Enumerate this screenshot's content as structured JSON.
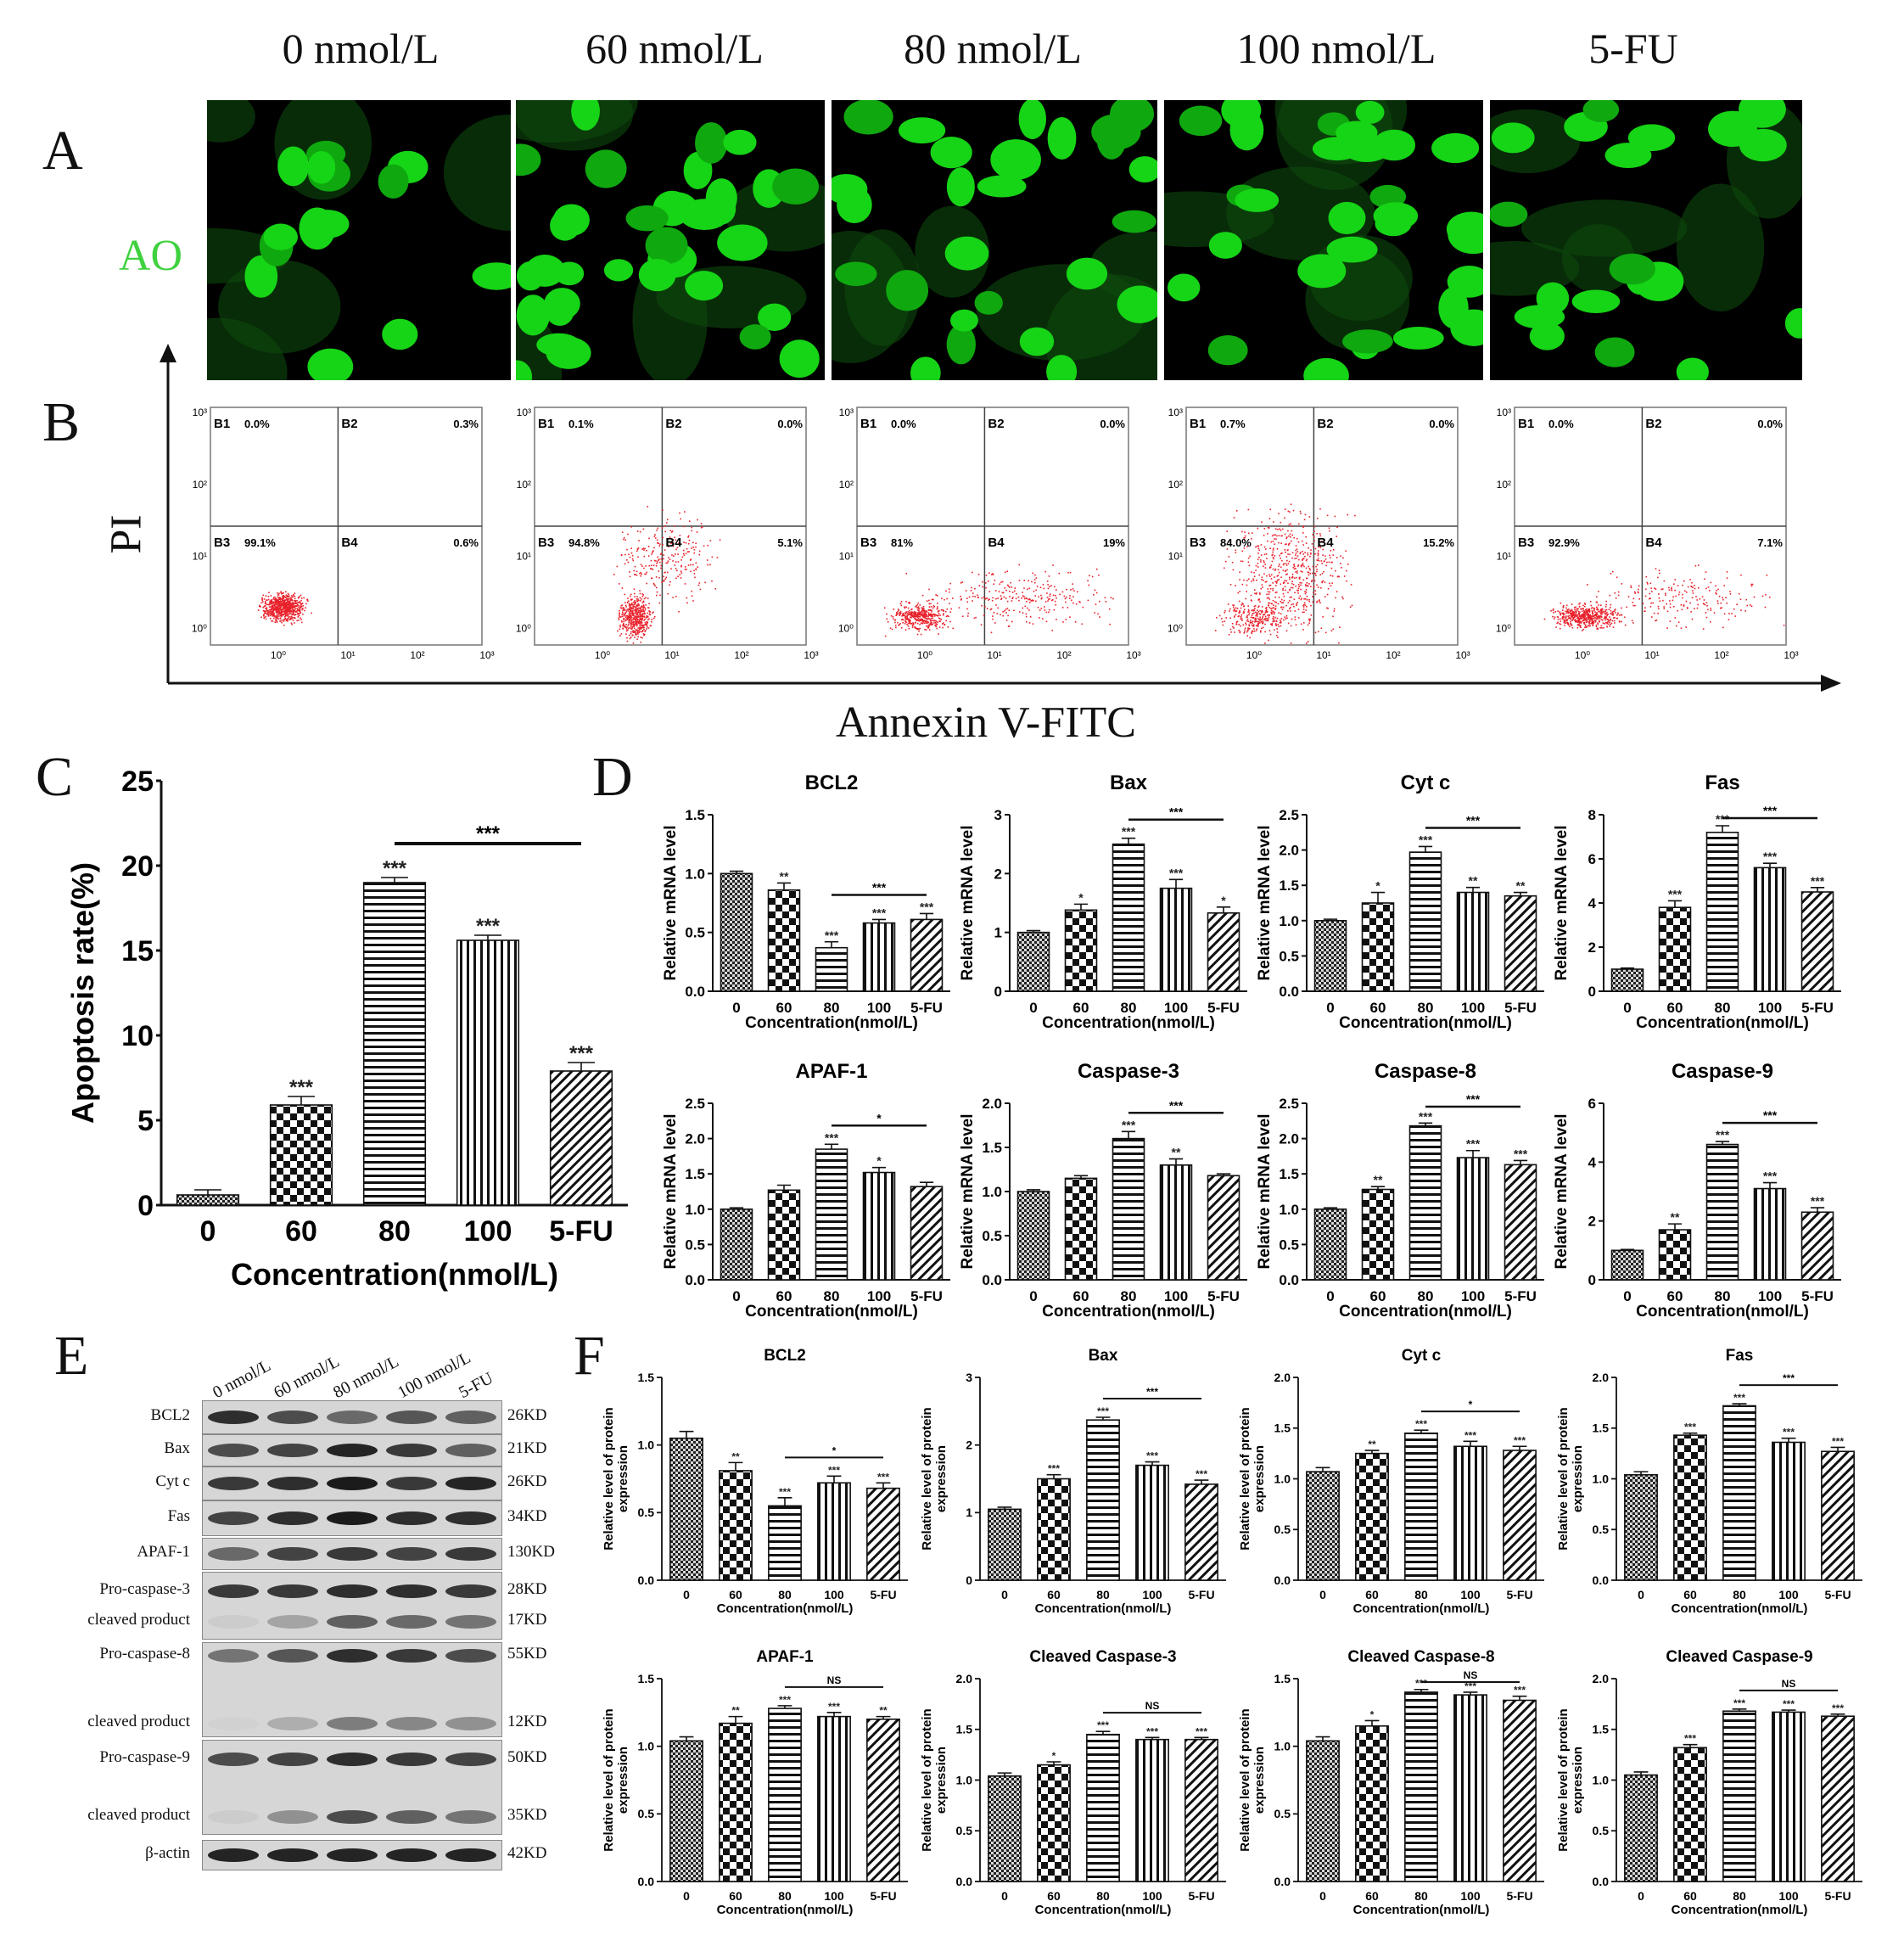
{
  "panels": {
    "A": "A",
    "B": "B",
    "C": "C",
    "D": "D",
    "E": "E",
    "F": "F"
  },
  "concentrations": [
    "0 nmol/L",
    "60 nmol/L",
    "80 nmol/L",
    "100 nmol/L",
    "5-FU"
  ],
  "ao_label": "AO",
  "flow": {
    "y_label": "PI",
    "x_label": "Annexin V-FITC",
    "axis_ticks_y": [
      "10³",
      "10²",
      "10¹",
      "10⁰"
    ],
    "axis_ticks_x": [
      "10⁰",
      "10¹",
      "10²",
      "10³"
    ],
    "quadrant_names": [
      "B1",
      "B2",
      "B3",
      "B4"
    ],
    "plots": [
      {
        "B1": "0.0%",
        "B2": "0.3%",
        "B3": "99.1%",
        "B4": "0.6%"
      },
      {
        "B1": "0.1%",
        "B2": "0.0%",
        "B3": "94.8%",
        "B4": "5.1%"
      },
      {
        "B1": "0.0%",
        "B2": "0.0%",
        "B3": "81%",
        "B4": "19%"
      },
      {
        "B1": "0.7%",
        "B2": "0.0%",
        "B3": "84.0%",
        "B4": "15.2%"
      },
      {
        "B1": "0.0%",
        "B2": "0.0%",
        "B3": "92.9%",
        "B4": "7.1%"
      }
    ]
  },
  "chart_data": [
    {
      "id": "C",
      "type": "bar",
      "title": "",
      "xlabel": "Concentration(nmol/L)",
      "ylabel": "Apoptosis rate(%)",
      "categories": [
        "0",
        "60",
        "80",
        "100",
        "5-FU"
      ],
      "values": [
        0.6,
        5.9,
        19.0,
        15.6,
        7.9
      ],
      "errors": [
        0.3,
        0.5,
        0.3,
        0.3,
        0.5
      ],
      "stars": [
        "",
        "***",
        "***",
        "***",
        "***"
      ],
      "bracket": "***",
      "ylim": [
        0,
        25
      ],
      "yticks": [
        "0",
        "5",
        "10",
        "15",
        "20",
        "25"
      ]
    },
    {
      "id": "D1",
      "type": "bar",
      "title": "BCL2",
      "xlabel": "Concentration(nmol/L)",
      "ylabel": "Relative mRNA level",
      "categories": [
        "0",
        "60",
        "80",
        "100",
        "5-FU"
      ],
      "values": [
        1.0,
        0.86,
        0.37,
        0.58,
        0.61
      ],
      "errors": [
        0.02,
        0.06,
        0.05,
        0.03,
        0.05
      ],
      "stars": [
        "",
        "**",
        "***",
        "***",
        "***"
      ],
      "bracket": "***",
      "ylim": [
        0,
        1.5
      ],
      "yticks": [
        "0.0",
        "0.5",
        "1.0",
        "1.5"
      ]
    },
    {
      "id": "D2",
      "type": "bar",
      "title": "Bax",
      "xlabel": "Concentration(nmol/L)",
      "ylabel": "Relative mRNA level",
      "categories": [
        "0",
        "60",
        "80",
        "100",
        "5-FU"
      ],
      "values": [
        1.0,
        1.38,
        2.5,
        1.75,
        1.33
      ],
      "errors": [
        0.03,
        0.1,
        0.1,
        0.15,
        0.1
      ],
      "stars": [
        "",
        "*",
        "***",
        "***",
        "*"
      ],
      "bracket": "***",
      "ylim": [
        0,
        3
      ],
      "yticks": [
        "0",
        "1",
        "2",
        "3"
      ]
    },
    {
      "id": "D3",
      "type": "bar",
      "title": "Cyt c",
      "xlabel": "Concentration(nmol/L)",
      "ylabel": "Relative mRNA level",
      "categories": [
        "0",
        "60",
        "80",
        "100",
        "5-FU"
      ],
      "values": [
        1.0,
        1.25,
        1.97,
        1.4,
        1.35
      ],
      "errors": [
        0.02,
        0.15,
        0.08,
        0.07,
        0.05
      ],
      "stars": [
        "",
        "*",
        "***",
        "**",
        "**"
      ],
      "bracket": "***",
      "ylim": [
        0,
        2.5
      ],
      "yticks": [
        "0.0",
        "0.5",
        "1.0",
        "1.5",
        "2.0",
        "2.5"
      ]
    },
    {
      "id": "D4",
      "type": "bar",
      "title": "Fas",
      "xlabel": "Concentration(nmol/L)",
      "ylabel": "Relative mRNA level",
      "categories": [
        "0",
        "60",
        "80",
        "100",
        "5-FU"
      ],
      "values": [
        1.0,
        3.8,
        7.2,
        5.6,
        4.5
      ],
      "errors": [
        0.05,
        0.3,
        0.3,
        0.2,
        0.2
      ],
      "stars": [
        "",
        "***",
        "***",
        "***",
        "***"
      ],
      "bracket": "***",
      "ylim": [
        0,
        8
      ],
      "yticks": [
        "0",
        "2",
        "4",
        "6",
        "8"
      ]
    },
    {
      "id": "D5",
      "type": "bar",
      "title": "APAF-1",
      "xlabel": "Concentration(nmol/L)",
      "ylabel": "Relative mRNA level",
      "categories": [
        "0",
        "60",
        "80",
        "100",
        "5-FU"
      ],
      "values": [
        1.0,
        1.27,
        1.85,
        1.52,
        1.32
      ],
      "errors": [
        0.02,
        0.07,
        0.07,
        0.07,
        0.06
      ],
      "stars": [
        "",
        "",
        "***",
        "*",
        ""
      ],
      "bracket": "*",
      "ylim": [
        0,
        2.5
      ],
      "yticks": [
        "0.0",
        "0.5",
        "1.0",
        "1.5",
        "2.0",
        "2.5"
      ]
    },
    {
      "id": "D6",
      "type": "bar",
      "title": "Caspase-3",
      "xlabel": "Concentration(nmol/L)",
      "ylabel": "Relative mRNA level",
      "categories": [
        "0",
        "60",
        "80",
        "100",
        "5-FU"
      ],
      "values": [
        1.0,
        1.15,
        1.6,
        1.3,
        1.18
      ],
      "errors": [
        0.02,
        0.03,
        0.08,
        0.07,
        0.02
      ],
      "stars": [
        "",
        "",
        "***",
        "**",
        ""
      ],
      "bracket": "***",
      "ylim": [
        0,
        2.0
      ],
      "yticks": [
        "0.0",
        "0.5",
        "1.0",
        "1.5",
        "2.0"
      ]
    },
    {
      "id": "D7",
      "type": "bar",
      "title": "Caspase-8",
      "xlabel": "Concentration(nmol/L)",
      "ylabel": "Relative mRNA level",
      "categories": [
        "0",
        "60",
        "80",
        "100",
        "5-FU"
      ],
      "values": [
        1.0,
        1.28,
        2.18,
        1.73,
        1.63
      ],
      "errors": [
        0.02,
        0.04,
        0.04,
        0.1,
        0.06
      ],
      "stars": [
        "",
        "**",
        "***",
        "***",
        "***"
      ],
      "bracket": "***",
      "ylim": [
        0,
        2.5
      ],
      "yticks": [
        "0.0",
        "0.5",
        "1.0",
        "1.5",
        "2.0",
        "2.5"
      ]
    },
    {
      "id": "D8",
      "type": "bar",
      "title": "Caspase-9",
      "xlabel": "Concentration(nmol/L)",
      "ylabel": "Relative mRNA level",
      "categories": [
        "0",
        "60",
        "80",
        "100",
        "5-FU"
      ],
      "values": [
        1.0,
        1.7,
        4.6,
        3.1,
        2.3
      ],
      "errors": [
        0.03,
        0.2,
        0.1,
        0.2,
        0.15
      ],
      "stars": [
        "",
        "**",
        "***",
        "***",
        "***"
      ],
      "bracket": "***",
      "ylim": [
        0,
        6
      ],
      "yticks": [
        "0",
        "2",
        "4",
        "6"
      ]
    },
    {
      "id": "F1",
      "type": "bar",
      "title": "BCL2",
      "xlabel": "Concentration(nmol/L)",
      "ylabel": "Relative level of protein expression",
      "categories": [
        "0",
        "60",
        "80",
        "100",
        "5-FU"
      ],
      "values": [
        1.05,
        0.81,
        0.55,
        0.72,
        0.68
      ],
      "errors": [
        0.05,
        0.06,
        0.06,
        0.05,
        0.04
      ],
      "stars": [
        "",
        "**",
        "***",
        "***",
        "***"
      ],
      "bracket": "*",
      "ylim": [
        0,
        1.5
      ],
      "yticks": [
        "0.0",
        "0.5",
        "1.0",
        "1.5"
      ]
    },
    {
      "id": "F2",
      "type": "bar",
      "title": "Bax",
      "xlabel": "Concentration(nmol/L)",
      "ylabel": "Relative level of protein expression",
      "categories": [
        "0",
        "60",
        "80",
        "100",
        "5-FU"
      ],
      "values": [
        1.05,
        1.5,
        2.37,
        1.7,
        1.42
      ],
      "errors": [
        0.03,
        0.06,
        0.04,
        0.05,
        0.06
      ],
      "stars": [
        "",
        "***",
        "***",
        "***",
        "***"
      ],
      "bracket": "***",
      "ylim": [
        0,
        3
      ],
      "yticks": [
        "0",
        "1",
        "2",
        "3"
      ]
    },
    {
      "id": "F3",
      "type": "bar",
      "title": "Cyt c",
      "xlabel": "Concentration(nmol/L)",
      "ylabel": "Relative level of protein expression",
      "categories": [
        "0",
        "60",
        "80",
        "100",
        "5-FU"
      ],
      "values": [
        1.07,
        1.25,
        1.45,
        1.32,
        1.28
      ],
      "errors": [
        0.04,
        0.03,
        0.03,
        0.05,
        0.04
      ],
      "stars": [
        "",
        "**",
        "***",
        "***",
        "***"
      ],
      "bracket": "*",
      "ylim": [
        0,
        2.0
      ],
      "yticks": [
        "0.0",
        "0.5",
        "1.0",
        "1.5",
        "2.0"
      ]
    },
    {
      "id": "F4",
      "type": "bar",
      "title": "Fas",
      "xlabel": "Concentration(nmol/L)",
      "ylabel": "Relative level of protein expression",
      "categories": [
        "0",
        "60",
        "80",
        "100",
        "5-FU"
      ],
      "values": [
        1.04,
        1.43,
        1.72,
        1.36,
        1.27
      ],
      "errors": [
        0.03,
        0.02,
        0.02,
        0.04,
        0.04
      ],
      "stars": [
        "",
        "***",
        "***",
        "***",
        "***"
      ],
      "bracket": "***",
      "ylim": [
        0,
        2.0
      ],
      "yticks": [
        "0.0",
        "0.5",
        "1.0",
        "1.5",
        "2.0"
      ]
    },
    {
      "id": "F5",
      "type": "bar",
      "title": "APAF-1",
      "xlabel": "Concentration(nmol/L)",
      "ylabel": "Relative level of protein expression",
      "categories": [
        "0",
        "60",
        "80",
        "100",
        "5-FU"
      ],
      "values": [
        1.04,
        1.17,
        1.28,
        1.22,
        1.2
      ],
      "errors": [
        0.03,
        0.05,
        0.02,
        0.03,
        0.02
      ],
      "stars": [
        "",
        "**",
        "***",
        "***",
        "**"
      ],
      "bracket": "NS",
      "ylim": [
        0,
        1.5
      ],
      "yticks": [
        "0.0",
        "0.5",
        "1.0",
        "1.5"
      ]
    },
    {
      "id": "F6",
      "type": "bar",
      "title": "Cleaved Caspase-3",
      "xlabel": "Concentration(nmol/L)",
      "ylabel": "Relative level of protein expression",
      "categories": [
        "0",
        "60",
        "80",
        "100",
        "5-FU"
      ],
      "values": [
        1.04,
        1.15,
        1.45,
        1.4,
        1.4
      ],
      "errors": [
        0.03,
        0.03,
        0.03,
        0.02,
        0.02
      ],
      "stars": [
        "",
        "*",
        "***",
        "***",
        "***"
      ],
      "bracket": "NS",
      "ylim": [
        0,
        2.0
      ],
      "yticks": [
        "0.0",
        "0.5",
        "1.0",
        "1.5",
        "2.0"
      ]
    },
    {
      "id": "F7",
      "type": "bar",
      "title": "Cleaved Caspase-8",
      "xlabel": "Concentration(nmol/L)",
      "ylabel": "Relative level of protein expression",
      "categories": [
        "0",
        "60",
        "80",
        "100",
        "5-FU"
      ],
      "values": [
        1.04,
        1.15,
        1.4,
        1.38,
        1.34
      ],
      "errors": [
        0.03,
        0.04,
        0.02,
        0.02,
        0.03
      ],
      "stars": [
        "",
        "*",
        "***",
        "***",
        "***"
      ],
      "bracket": "NS",
      "ylim": [
        0,
        1.5
      ],
      "yticks": [
        "0.0",
        "0.5",
        "1.0",
        "1.5"
      ]
    },
    {
      "id": "F8",
      "type": "bar",
      "title": "Cleaved Caspase-9",
      "xlabel": "Concentration(nmol/L)",
      "ylabel": "Relative level of protein expression",
      "categories": [
        "0",
        "60",
        "80",
        "100",
        "5-FU"
      ],
      "values": [
        1.05,
        1.32,
        1.68,
        1.67,
        1.63
      ],
      "errors": [
        0.03,
        0.03,
        0.02,
        0.02,
        0.02
      ],
      "stars": [
        "",
        "***",
        "***",
        "***",
        "***"
      ],
      "bracket": "NS",
      "ylim": [
        0,
        2.0
      ],
      "yticks": [
        "0.0",
        "0.5",
        "1.0",
        "1.5",
        "2.0"
      ]
    }
  ],
  "western_blot": {
    "lanes": [
      "0 nmol/L",
      "60 nmol/L",
      "80 nmol/L",
      "100 nmol/L",
      "5-FU"
    ],
    "rows": [
      {
        "label": "BCL2",
        "kd": "26KD"
      },
      {
        "label": "Bax",
        "kd": "21KD"
      },
      {
        "label": "Cyt c",
        "kd": "26KD"
      },
      {
        "label": "Fas",
        "kd": "34KD"
      },
      {
        "label": "APAF-1",
        "kd": "130KD"
      },
      {
        "label": "Pro-caspase-3",
        "kd": "28KD"
      },
      {
        "label": "cleaved product",
        "kd": "17KD"
      },
      {
        "label": "Pro-caspase-8",
        "kd": "55KD"
      },
      {
        "label": "cleaved product",
        "kd": "12KD"
      },
      {
        "label": "Pro-caspase-9",
        "kd": "50KD"
      },
      {
        "label": "cleaved product",
        "kd": "35KD"
      },
      {
        "label": "β-actin",
        "kd": "42KD"
      }
    ]
  }
}
